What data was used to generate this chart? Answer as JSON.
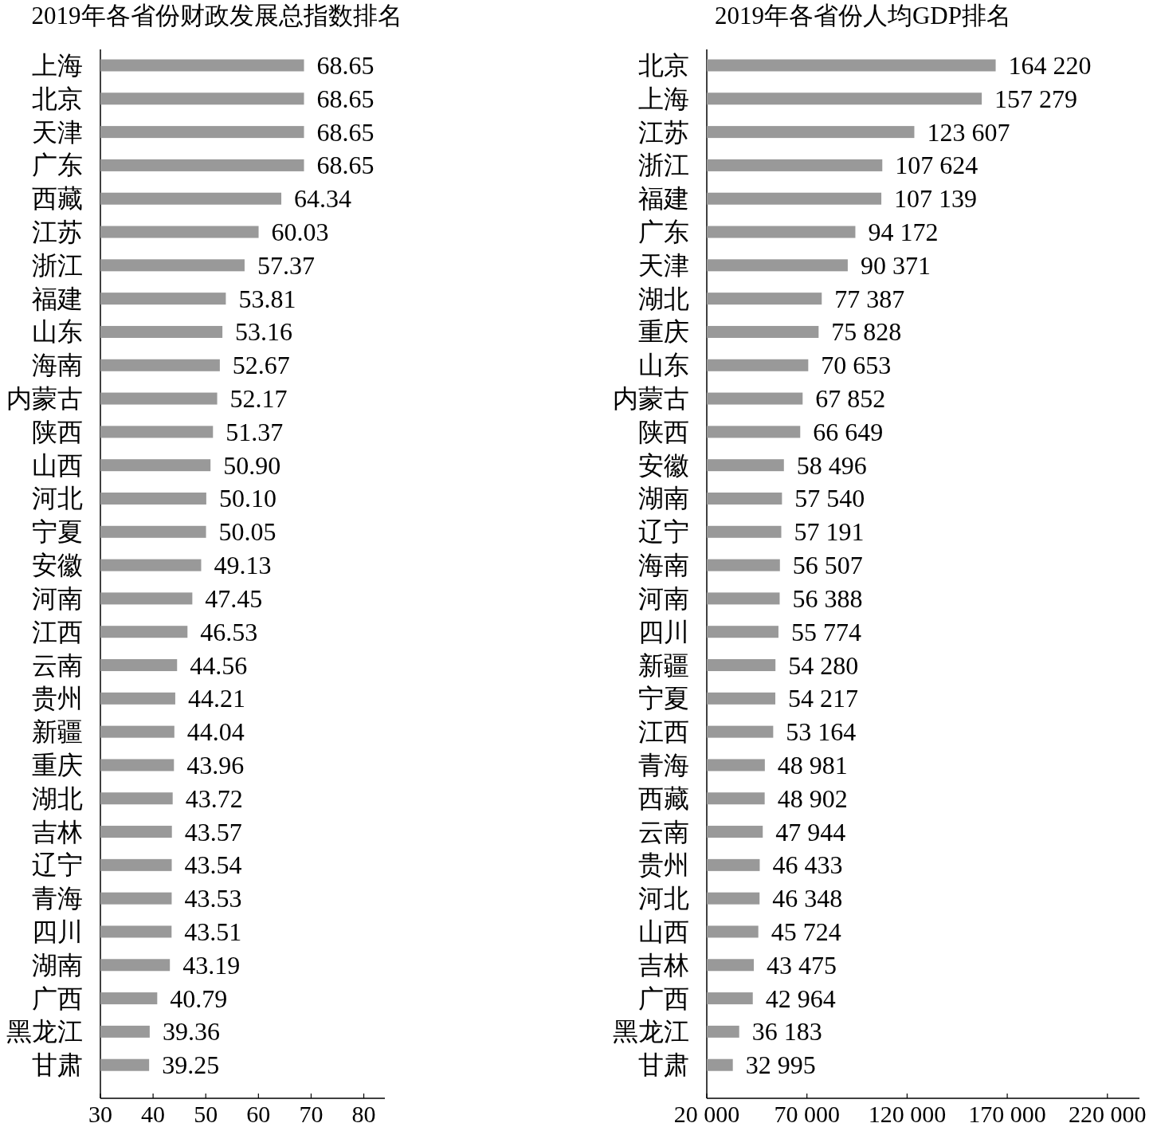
{
  "chart_data": [
    {
      "type": "bar",
      "orientation": "horizontal",
      "title": "2019年各省份财政发展总指数排名",
      "color": "#999999",
      "categories": [
        "上海",
        "北京",
        "天津",
        "广东",
        "西藏",
        "江苏",
        "浙江",
        "福建",
        "山东",
        "海南",
        "内蒙古",
        "陕西",
        "山西",
        "河北",
        "宁夏",
        "安徽",
        "河南",
        "江西",
        "云南",
        "贵州",
        "新疆",
        "重庆",
        "湖北",
        "吉林",
        "辽宁",
        "青海",
        "四川",
        "湖南",
        "广西",
        "黑龙江",
        "甘肃"
      ],
      "values": [
        68.65,
        68.65,
        68.65,
        68.65,
        64.34,
        60.03,
        57.37,
        53.81,
        53.16,
        52.67,
        52.17,
        51.37,
        50.9,
        50.1,
        50.05,
        49.13,
        47.45,
        46.53,
        44.56,
        44.21,
        44.04,
        43.96,
        43.72,
        43.57,
        43.54,
        43.53,
        43.51,
        43.19,
        40.79,
        39.36,
        39.25
      ],
      "value_labels": [
        "68.65",
        "68.65",
        "68.65",
        "68.65",
        "64.34",
        "60.03",
        "57.37",
        "53.81",
        "53.16",
        "52.67",
        "52.17",
        "51.37",
        "50.90",
        "50.10",
        "50.05",
        "49.13",
        "47.45",
        "46.53",
        "44.56",
        "44.21",
        "44.04",
        "43.96",
        "43.72",
        "43.57",
        "43.54",
        "43.53",
        "43.51",
        "43.19",
        "40.79",
        "39.36",
        "39.25"
      ],
      "xlim": [
        30,
        84
      ],
      "xticks": [
        30,
        40,
        50,
        60,
        70,
        80
      ]
    },
    {
      "type": "bar",
      "orientation": "horizontal",
      "title": "2019年各省份人均GDP排名",
      "color": "#999999",
      "categories": [
        "北京",
        "上海",
        "江苏",
        "浙江",
        "福建",
        "广东",
        "天津",
        "湖北",
        "重庆",
        "山东",
        "内蒙古",
        "陕西",
        "安徽",
        "湖南",
        "辽宁",
        "海南",
        "河南",
        "四川",
        "新疆",
        "宁夏",
        "江西",
        "青海",
        "西藏",
        "云南",
        "贵州",
        "河北",
        "山西",
        "吉林",
        "广西",
        "黑龙江",
        "甘肃"
      ],
      "values": [
        164220,
        157279,
        123607,
        107624,
        107139,
        94172,
        90371,
        77387,
        75828,
        70653,
        67852,
        66649,
        58496,
        57540,
        57191,
        56507,
        56388,
        55774,
        54280,
        54217,
        53164,
        48981,
        48902,
        47944,
        46433,
        46348,
        45724,
        43475,
        42964,
        36183,
        32995
      ],
      "value_labels": [
        "164 220",
        "157 279",
        "123 607",
        "107 624",
        "107 139",
        "94 172",
        "90 371",
        "77 387",
        "75 828",
        "70 653",
        "67 852",
        "66 649",
        "58 496",
        "57 540",
        "57 191",
        "56 507",
        "56 388",
        "55 774",
        "54 280",
        "54 217",
        "53 164",
        "48 981",
        "48 902",
        "47 944",
        "46 433",
        "46 348",
        "45 724",
        "43 475",
        "42 964",
        "36 183",
        "32 995"
      ],
      "xlim": [
        20000,
        236000
      ],
      "xticks": [
        {
          "value": 20000,
          "label": "20 000"
        },
        {
          "value": 70000,
          "label": "70 000"
        },
        {
          "value": 120000,
          "label": "120 000"
        },
        {
          "value": 170000,
          "label": "170 000"
        },
        {
          "value": 220000,
          "label": "220 000"
        }
      ]
    }
  ]
}
